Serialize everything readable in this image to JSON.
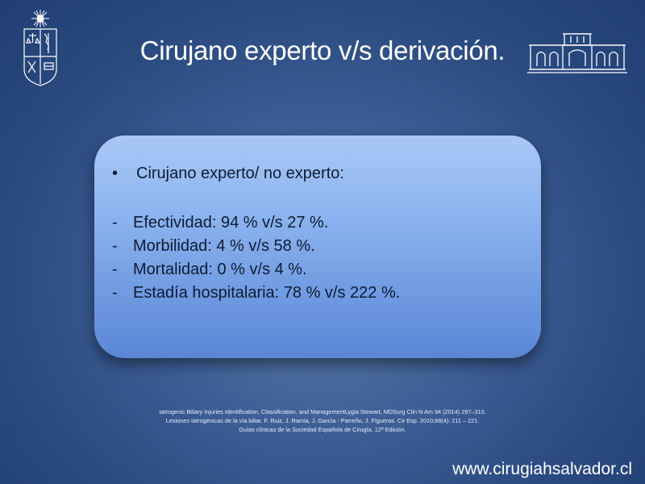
{
  "slide": {
    "title": "Cirujano experto v/s derivación."
  },
  "card": {
    "bullet_symbol": "•",
    "heading": "Cirujano experto/ no experto:",
    "dash_symbol": "-",
    "items": [
      "Efectividad: 94 %  v/s 27 %.",
      "Morbilidad: 4 %  v/s 58 %.",
      "Mortalidad: 0 %  v/s 4 %.",
      "Estadía hospitalaria: 78 %  v/s 222 %."
    ]
  },
  "references": [
    "Iatrogenic Biliary Injuries Identification, Classification, and ManagementLygia Stewart, MDSurg Clin N Am 94 (2014) 297–310.",
    "Lesiones Iatrogénicas de la vía biliar. F. Ruiz, J. Ramia, J. García -  Parreño, J. Figueras. Cir Esp. 2010;88(4): 211 – 221.",
    "Guías clínicas de la Sociedad Española de Cirugía. 12ª Edición."
  ],
  "footer": {
    "website": "www.cirugiahsalvador.cl"
  },
  "icons": {
    "left_logo": "university-crest-icon",
    "right_logo": "hospital-building-icon"
  }
}
